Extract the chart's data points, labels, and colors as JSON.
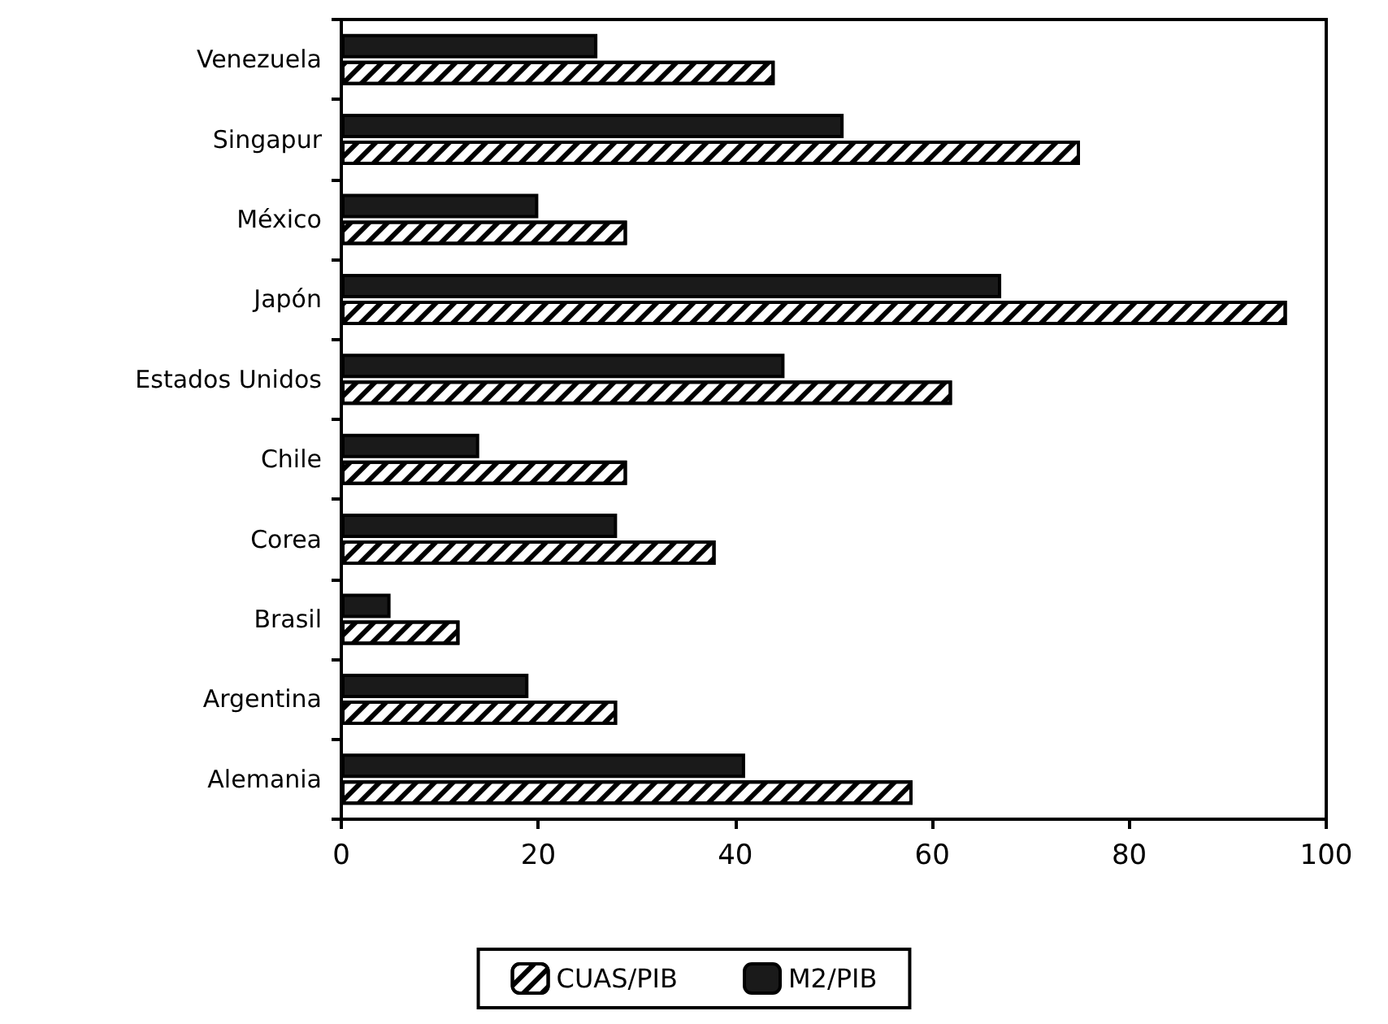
{
  "chart_data": {
    "type": "bar",
    "orientation": "horizontal",
    "categories": [
      "Venezuela",
      "Singapur",
      "México",
      "Japón",
      "Estados Unidos",
      "Chile",
      "Corea",
      "Brasil",
      "Argentina",
      "Alemania"
    ],
    "series": [
      {
        "name": "CUAS/PIB",
        "color": "#ffffff",
        "values": [
          44,
          75,
          29,
          96,
          62,
          29,
          38,
          12,
          28,
          58
        ]
      },
      {
        "name": "M2/PIB",
        "color": "#1a1a1a",
        "values": [
          26,
          51,
          20,
          67,
          45,
          14,
          28,
          5,
          19,
          41
        ]
      }
    ],
    "xlim": [
      0,
      100
    ],
    "xticks": [
      0,
      20,
      40,
      60,
      80,
      100
    ],
    "grid": false,
    "legend": "bottom"
  }
}
